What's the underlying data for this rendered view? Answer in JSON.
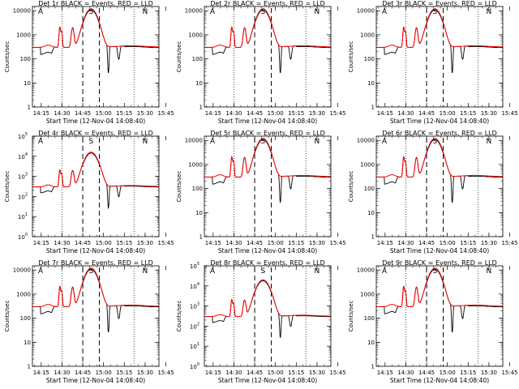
{
  "chart_data": {
    "type": "line",
    "x_ticks": [
      "14:15",
      "14:30",
      "14:45",
      "15:00",
      "15:15",
      "15:30",
      "15:45"
    ],
    "xlabel": "Start Time (12-Nov-04 14:08:40)",
    "ylabel": "Counts/sec",
    "yscale": "log",
    "markers": [
      "A",
      "S",
      "N"
    ],
    "series_colors": {
      "events": "#000000",
      "lld": "#ff0000"
    },
    "x_range_min": [
      8.67,
      100
    ],
    "panels": [
      {
        "title": "Det 1r BLACK = Events, RED = LLD",
        "ytick_style": "linear",
        "y_ticks": [
          "1",
          "10",
          "100",
          "1000",
          "10000"
        ],
        "ylim": [
          1,
          15000
        ],
        "peak": 12000,
        "base": 300
      },
      {
        "title": "Det 2r BLACK = Events, RED = LLD",
        "ytick_style": "linear",
        "y_ticks": [
          "1",
          "10",
          "100",
          "1000",
          "10000"
        ],
        "ylim": [
          1,
          15000
        ],
        "peak": 12000,
        "base": 300
      },
      {
        "title": "Det 3r BLACK = Events, RED = LLD",
        "ytick_style": "linear",
        "y_ticks": [
          "1",
          "10",
          "100",
          "1000",
          "10000"
        ],
        "ylim": [
          1,
          15000
        ],
        "peak": 12000,
        "base": 300
      },
      {
        "title": "Det 4r BLACK = Events, RED = LLD",
        "ytick_style": "pow",
        "y_ticks": [
          "0",
          "1",
          "2",
          "3",
          "4",
          "5"
        ],
        "ylim": [
          1,
          100000
        ],
        "peak": 16000,
        "base": 300
      },
      {
        "title": "Det 5r BLACK = Events, RED = LLD",
        "ytick_style": "linear",
        "y_ticks": [
          "1",
          "10",
          "100",
          "1000",
          "10000"
        ],
        "ylim": [
          1,
          15000
        ],
        "peak": 12000,
        "base": 300
      },
      {
        "title": "Det 6r BLACK = Events, RED = LLD",
        "ytick_style": "linear",
        "y_ticks": [
          "1",
          "10",
          "100",
          "1000",
          "10000"
        ],
        "ylim": [
          1,
          15000
        ],
        "peak": 12000,
        "base": 300
      },
      {
        "title": "Det 7r BLACK = Events, RED = LLD",
        "ytick_style": "linear",
        "y_ticks": [
          "1",
          "10",
          "100",
          "1000",
          "10000"
        ],
        "ylim": [
          1,
          15000
        ],
        "peak": 12000,
        "base": 300
      },
      {
        "title": "Det 8r BLACK = Events, RED = LLD",
        "ytick_style": "pow",
        "y_ticks": [
          "0",
          "1",
          "2",
          "3",
          "4",
          "5"
        ],
        "ylim": [
          1,
          100000
        ],
        "peak": 20000,
        "base": 300
      },
      {
        "title": "Det 9r BLACK = Events, RED = LLD",
        "ytick_style": "linear",
        "y_ticks": [
          "1",
          "10",
          "100",
          "1000",
          "10000"
        ],
        "ylim": [
          1,
          15000
        ],
        "peak": 12000,
        "base": 300
      }
    ]
  }
}
